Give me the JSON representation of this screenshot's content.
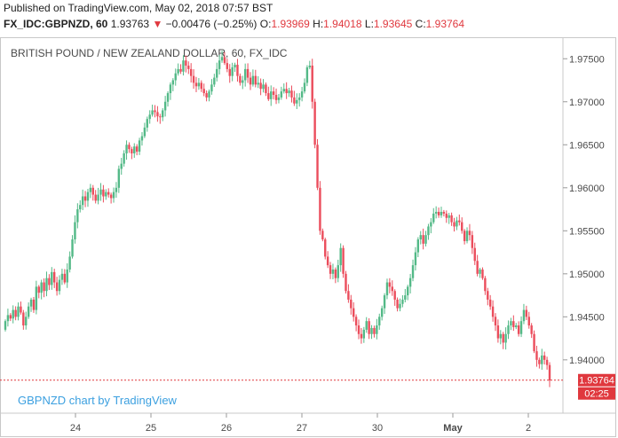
{
  "header": {
    "published": "Published on TradingView.com, May 02, 2018 07:57 BST",
    "symbol": "FX_IDC:GBPNZD, 60",
    "last": "1.93763",
    "arrow": "▼",
    "change": "−0.00476 (−0.25%)",
    "o_label": "O:",
    "o_value": "1.93969",
    "h_label": "H:",
    "h_value": "1.94018",
    "l_label": "L:",
    "l_value": "1.93645",
    "c_label": "C:",
    "c_value": "1.93764"
  },
  "chart_data": {
    "type": "candlestick",
    "title": "BRITISH POUND / NEW ZEALAND DOLLAR, 60, FX_IDC",
    "watermark": "GBPNZD chart by TradingView",
    "x_ticks": [
      "24",
      "25",
      "26",
      "27",
      "30",
      "May",
      "2"
    ],
    "y_ticks": [
      "1.97500",
      "1.97000",
      "1.96500",
      "1.96000",
      "1.95500",
      "1.95000",
      "1.94500",
      "1.94000"
    ],
    "y_range": [
      1.9338,
      1.9775
    ],
    "current_price": "1.93764",
    "current_value": 1.93764,
    "countdown": "02:25",
    "colors": {
      "up": "#53b987",
      "down": "#eb4d5c",
      "price_tag": "#e0383e"
    },
    "grid": false,
    "closes": [
      1.9445,
      1.9452,
      1.9448,
      1.9458,
      1.945,
      1.9462,
      1.9455,
      1.944,
      1.945,
      1.9462,
      1.947,
      1.9458,
      1.9485,
      1.9478,
      1.949,
      1.948,
      1.9495,
      1.9487,
      1.9502,
      1.949,
      1.948,
      1.9493,
      1.95,
      1.949,
      1.9505,
      1.952,
      1.954,
      1.956,
      1.9575,
      1.958,
      1.959,
      1.9585,
      1.9595,
      1.96,
      1.9592,
      1.9585,
      1.9592,
      1.9598,
      1.959,
      1.9595,
      1.9592,
      1.9588,
      1.9595,
      1.96,
      1.9622,
      1.9628,
      1.964,
      1.965,
      1.9645,
      1.964,
      1.9648,
      1.9642,
      1.9655,
      1.966,
      1.967,
      1.968,
      1.9685,
      1.969,
      1.9688,
      1.9683,
      1.9682,
      1.969,
      1.97,
      1.971,
      1.972,
      1.9725,
      1.9733,
      1.9738,
      1.9735,
      1.9748,
      1.9742,
      1.9738,
      1.973,
      1.9722,
      1.9718,
      1.9722,
      1.9715,
      1.971,
      1.9705,
      1.9712,
      1.972,
      1.9728,
      1.9738,
      1.9748,
      1.9752,
      1.9745,
      1.9738,
      1.973,
      1.974,
      1.9743,
      1.973,
      1.9722,
      1.9725,
      1.9738,
      1.9728,
      1.972,
      1.973,
      1.972,
      1.9722,
      1.9715,
      1.972,
      1.971,
      1.9703,
      1.9712,
      1.9708,
      1.9702,
      1.9705,
      1.9712,
      1.9715,
      1.971,
      1.9713,
      1.9705,
      1.9698,
      1.9702,
      1.9705,
      1.9712,
      1.9722,
      1.974,
      1.9742,
      1.97,
      1.965,
      1.96,
      1.955,
      1.954,
      1.952,
      1.951,
      1.95,
      1.9505,
      1.9495,
      1.951,
      1.953,
      1.95,
      1.948,
      1.947,
      1.946,
      1.945,
      1.944,
      1.943,
      1.9425,
      1.9435,
      1.9445,
      1.943,
      1.9437,
      1.943,
      1.944,
      1.945,
      1.946,
      1.9475,
      1.949,
      1.9485,
      1.948,
      1.947,
      1.946,
      1.9465,
      1.947,
      1.9475,
      1.9485,
      1.9495,
      1.951,
      1.9525,
      1.954,
      1.9545,
      1.9535,
      1.9545,
      1.9555,
      1.956,
      1.957,
      1.9572,
      1.9568,
      1.9572,
      1.957,
      1.9565,
      1.9568,
      1.956,
      1.9555,
      1.9562,
      1.956,
      1.955,
      1.9538,
      1.955,
      1.9545,
      1.953,
      1.9515,
      1.95,
      1.9505,
      1.9495,
      1.948,
      1.947,
      1.9462,
      1.945,
      1.944,
      1.9425,
      1.943,
      1.942,
      1.943,
      1.944,
      1.9445,
      1.9438,
      1.944,
      1.943,
      1.9445,
      1.9458,
      1.945,
      1.944,
      1.943,
      1.941,
      1.94,
      1.9395,
      1.9405,
      1.94,
      1.9394,
      1.9376
    ],
    "open_first": 1.9435
  },
  "labels": {
    "current_price_tag": "1.93764",
    "countdown_tag": "02:25"
  }
}
